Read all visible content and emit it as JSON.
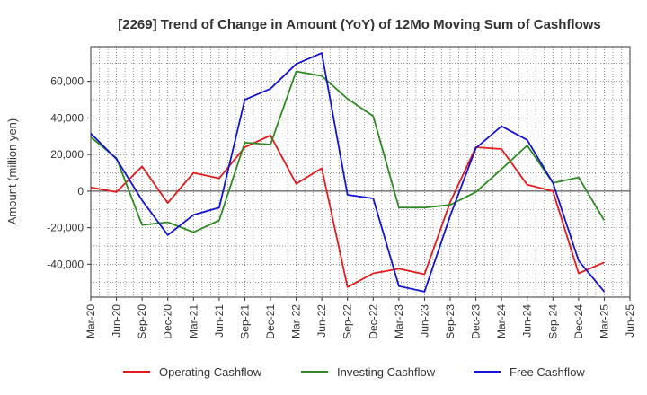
{
  "chart_data": {
    "type": "line",
    "title": "[2269]  Trend of Change in Amount (YoY) of 12Mo Moving Sum of Cashflows",
    "xlabel": "",
    "ylabel": "Amount (million yen)",
    "ylim": [
      -58000,
      79000
    ],
    "yticks": [
      60000,
      40000,
      20000,
      0,
      -20000,
      -40000
    ],
    "ytick_labels": [
      "60,000",
      "40,000",
      "20,000",
      "0",
      "-20,000",
      "-40,000"
    ],
    "categories": [
      "Mar-20",
      "Jun-20",
      "Sep-20",
      "Dec-20",
      "Mar-21",
      "Jun-21",
      "Sep-21",
      "Dec-21",
      "Mar-22",
      "Jun-22",
      "Sep-22",
      "Dec-22",
      "Mar-23",
      "Jun-23",
      "Sep-23",
      "Dec-23",
      "Mar-24",
      "Jun-24",
      "Sep-24",
      "Dec-24",
      "Mar-25",
      "Jun-25"
    ],
    "grid": true,
    "legend_position": "bottom",
    "series": [
      {
        "name": "Operating Cashflow",
        "color": "#e41a1c",
        "values": [
          2000,
          -500,
          13500,
          -6500,
          10000,
          7000,
          24000,
          30500,
          4000,
          12500,
          -52500,
          -45000,
          -42500,
          -45500,
          -6000,
          24000,
          23000,
          3500,
          0,
          -45000,
          -39000,
          null
        ]
      },
      {
        "name": "Investing Cashflow",
        "color": "#2e8b22",
        "values": [
          29500,
          18000,
          -18500,
          -17000,
          -22500,
          -16000,
          26500,
          25500,
          65500,
          63000,
          50500,
          41000,
          -9000,
          -9000,
          -7500,
          -500,
          12000,
          25000,
          4500,
          7500,
          -16000,
          null
        ]
      },
      {
        "name": "Free Cashflow",
        "color": "#1414d2",
        "values": [
          31500,
          17500,
          -5000,
          -24000,
          -13000,
          -9000,
          50000,
          56000,
          69500,
          75500,
          -2000,
          -4000,
          -52000,
          -55000,
          -13500,
          23500,
          35500,
          28000,
          4500,
          -38000,
          -55000,
          null
        ]
      }
    ]
  }
}
